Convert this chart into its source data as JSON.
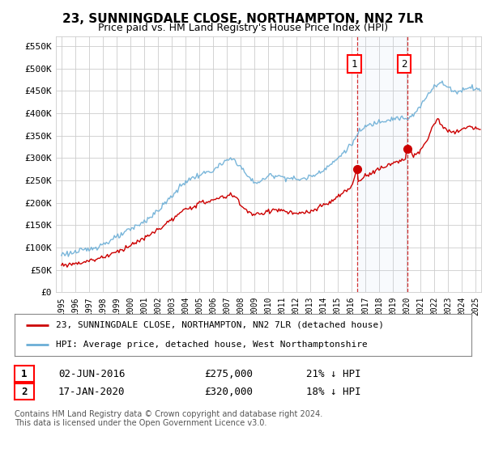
{
  "title": "23, SUNNINGDALE CLOSE, NORTHAMPTON, NN2 7LR",
  "subtitle": "Price paid vs. HM Land Registry's House Price Index (HPI)",
  "ylim": [
    0,
    575000
  ],
  "xlim_start": 1994.6,
  "xlim_end": 2025.4,
  "hpi_color": "#6baed6",
  "price_color": "#cc0000",
  "sale1_date_x": 2016.42,
  "sale1_price": 275000,
  "sale2_date_x": 2020.04,
  "sale2_price": 320000,
  "sale1_label": "02-JUN-2016",
  "sale1_amount": "£275,000",
  "sale1_hpi": "21% ↓ HPI",
  "sale2_label": "17-JAN-2020",
  "sale2_amount": "£320,000",
  "sale2_hpi": "18% ↓ HPI",
  "legend1": "23, SUNNINGDALE CLOSE, NORTHAMPTON, NN2 7LR (detached house)",
  "legend2": "HPI: Average price, detached house, West Northamptonshire",
  "footnote": "Contains HM Land Registry data © Crown copyright and database right 2024.\nThis data is licensed under the Open Government Licence v3.0.",
  "bg_color": "#ffffff",
  "grid_color": "#cccccc"
}
